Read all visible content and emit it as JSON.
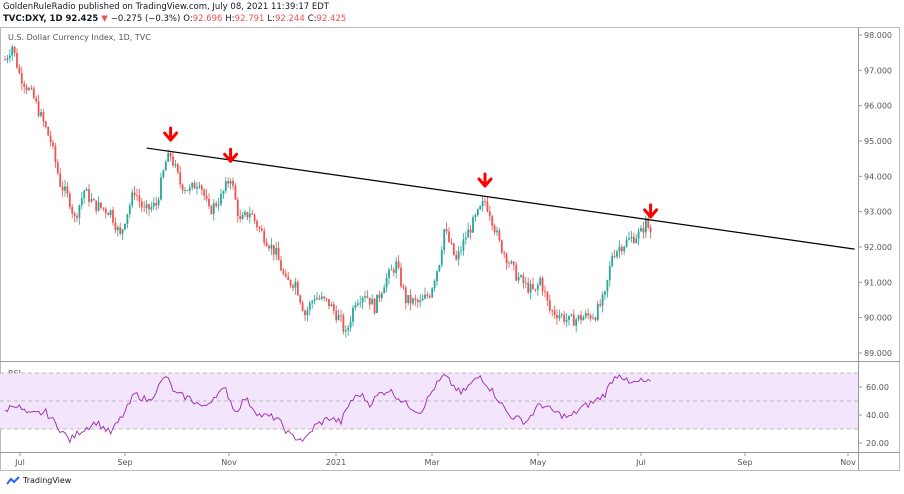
{
  "header": {
    "line1": "GoldenRuleRadio published on TradingView.com, July 08, 2021 11:39:17 EDT",
    "symbol": "TVC:DXY, 1D",
    "last": "92.425",
    "arrow": "▼",
    "change": "−0.275 (−0.3%)",
    "o_label": "O:",
    "o": "92.696",
    "h_label": "H:",
    "h": "92.791",
    "l_label": "L:",
    "l": "92.244",
    "c_label": "C:",
    "c": "92.425"
  },
  "watermark": "TradingView",
  "colors": {
    "up": "#26a69a",
    "down": "#ef5350",
    "rsi": "#9c27b0",
    "rsi_band": "#f3e5fb",
    "trend": "#000000",
    "arrow": "#ff0000"
  },
  "chart_data": [
    {
      "type": "candlestick",
      "title": "U.S. Dollar Currency Index, 1D, TVC",
      "ylim": [
        88.8,
        98.2
      ],
      "yticks": [
        "98.000",
        "97.000",
        "96.000",
        "95.000",
        "94.000",
        "93.000",
        "92.000",
        "91.000",
        "90.000",
        "89.000"
      ],
      "xticks": [
        "Jul",
        "Sep",
        "Nov",
        "2021",
        "Mar",
        "May",
        "Jul",
        "Sep",
        "Nov"
      ],
      "close_keypoints_by_trading_day": [
        [
          0,
          97.3
        ],
        [
          3,
          97.7
        ],
        [
          6,
          96.9
        ],
        [
          12,
          96.2
        ],
        [
          19,
          95.0
        ],
        [
          23,
          93.8
        ],
        [
          27,
          93.3
        ],
        [
          29,
          92.8
        ],
        [
          33,
          93.6
        ],
        [
          37,
          93.2
        ],
        [
          44,
          93.0
        ],
        [
          48,
          92.3
        ],
        [
          50,
          92.8
        ],
        [
          54,
          93.6
        ],
        [
          58,
          93.0
        ],
        [
          63,
          93.2
        ],
        [
          67,
          94.4
        ],
        [
          69,
          94.6
        ],
        [
          73,
          93.8
        ],
        [
          77,
          93.6
        ],
        [
          81,
          93.9
        ],
        [
          85,
          93.0
        ],
        [
          90,
          93.4
        ],
        [
          94,
          94.0
        ],
        [
          96,
          93.3
        ],
        [
          98,
          92.7
        ],
        [
          102,
          93.0
        ],
        [
          106,
          92.5
        ],
        [
          113,
          91.8
        ],
        [
          117,
          91.0
        ],
        [
          121,
          91.0
        ],
        [
          125,
          90.1
        ],
        [
          129,
          90.6
        ],
        [
          135,
          90.4
        ],
        [
          140,
          89.9
        ],
        [
          142,
          89.5
        ],
        [
          146,
          90.5
        ],
        [
          150,
          90.7
        ],
        [
          154,
          90.3
        ],
        [
          158,
          91.0
        ],
        [
          163,
          91.5
        ],
        [
          167,
          90.5
        ],
        [
          173,
          90.4
        ],
        [
          177,
          90.7
        ],
        [
          181,
          91.6
        ],
        [
          183,
          92.5
        ],
        [
          188,
          91.6
        ],
        [
          192,
          92.3
        ],
        [
          196,
          92.8
        ],
        [
          200,
          93.3
        ],
        [
          202,
          93.0
        ],
        [
          206,
          92.1
        ],
        [
          213,
          91.2
        ],
        [
          217,
          90.9
        ],
        [
          221,
          90.7
        ],
        [
          223,
          91.1
        ],
        [
          227,
          90.2
        ],
        [
          231,
          90.1
        ],
        [
          235,
          89.9
        ],
        [
          240,
          90.0
        ],
        [
          246,
          90.1
        ],
        [
          250,
          90.6
        ],
        [
          253,
          91.8
        ],
        [
          256,
          92.0
        ],
        [
          260,
          92.2
        ],
        [
          265,
          92.4
        ],
        [
          267,
          92.7
        ],
        [
          269,
          92.425
        ]
      ],
      "trendline": [
        [
          59,
          94.8
        ],
        [
          354,
          91.94
        ]
      ],
      "resistance_arrows_trading_day": [
        69,
        94,
        200,
        269
      ]
    },
    {
      "type": "line",
      "title": "RSI",
      "ylim": [
        10,
        80
      ],
      "band": [
        30,
        70
      ],
      "yticks": [
        "60.00",
        "40.00",
        "20.00"
      ],
      "keypoints_by_trading_day": [
        [
          0,
          43
        ],
        [
          4,
          48
        ],
        [
          10,
          40
        ],
        [
          17,
          42
        ],
        [
          23,
          30
        ],
        [
          27,
          22
        ],
        [
          31,
          28
        ],
        [
          38,
          35
        ],
        [
          44,
          27
        ],
        [
          50,
          42
        ],
        [
          54,
          55
        ],
        [
          60,
          50
        ],
        [
          67,
          68
        ],
        [
          71,
          55
        ],
        [
          77,
          52
        ],
        [
          83,
          45
        ],
        [
          88,
          55
        ],
        [
          92,
          58
        ],
        [
          96,
          42
        ],
        [
          100,
          52
        ],
        [
          106,
          40
        ],
        [
          113,
          38
        ],
        [
          119,
          25
        ],
        [
          125,
          22
        ],
        [
          129,
          32
        ],
        [
          135,
          38
        ],
        [
          140,
          35
        ],
        [
          144,
          50
        ],
        [
          148,
          55
        ],
        [
          152,
          48
        ],
        [
          156,
          55
        ],
        [
          160,
          58
        ],
        [
          167,
          48
        ],
        [
          173,
          42
        ],
        [
          179,
          60
        ],
        [
          183,
          68
        ],
        [
          190,
          55
        ],
        [
          194,
          62
        ],
        [
          198,
          68
        ],
        [
          204,
          55
        ],
        [
          210,
          40
        ],
        [
          217,
          35
        ],
        [
          223,
          48
        ],
        [
          229,
          42
        ],
        [
          235,
          38
        ],
        [
          240,
          45
        ],
        [
          246,
          50
        ],
        [
          250,
          55
        ],
        [
          253,
          65
        ],
        [
          256,
          70
        ],
        [
          260,
          62
        ],
        [
          265,
          64
        ],
        [
          269,
          63
        ]
      ]
    }
  ]
}
